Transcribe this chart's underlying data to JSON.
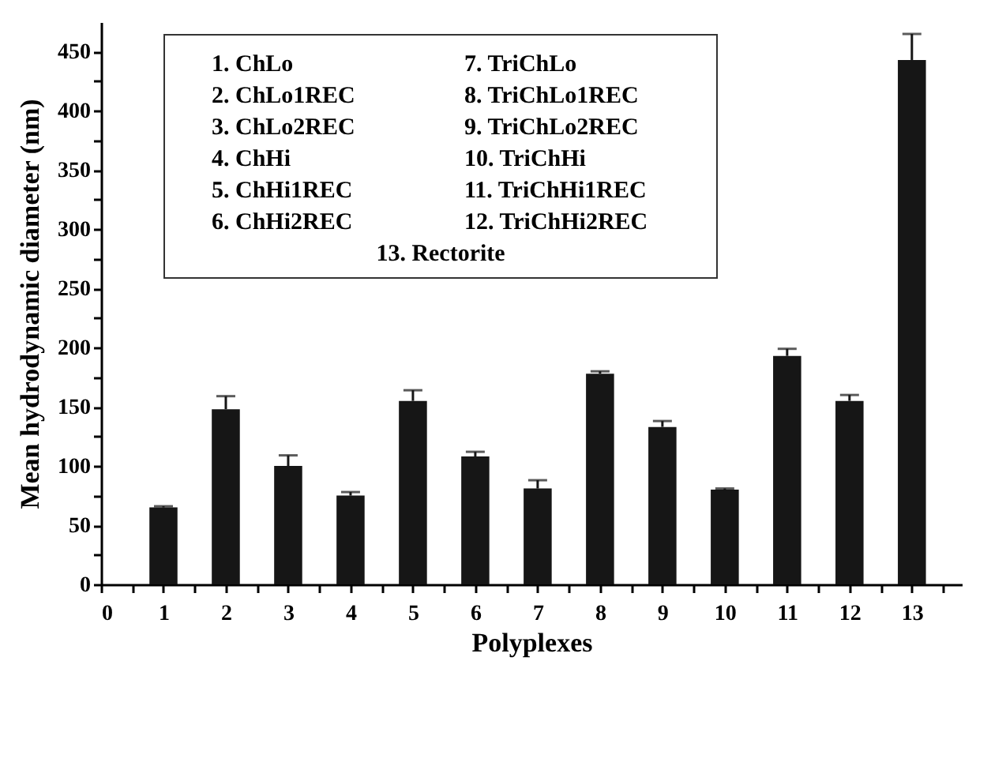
{
  "chart_data": {
    "type": "bar",
    "xlabel": "Polyplexes",
    "ylabel": "Mean hydrodynamic diameter (nm)",
    "x": [
      1,
      2,
      3,
      4,
      5,
      6,
      7,
      8,
      9,
      10,
      11,
      12,
      13
    ],
    "values": [
      65,
      148,
      100,
      75,
      155,
      108,
      81,
      178,
      133,
      80,
      193,
      155,
      443
    ],
    "errors": [
      1,
      11,
      9,
      3,
      9,
      4,
      7,
      2,
      5,
      1,
      6,
      5,
      22
    ],
    "color": "#161616",
    "xlim": [
      0,
      13.8
    ],
    "xticks": [
      0,
      {
        "value": 0.5,
        "label": null
      },
      1,
      {
        "value": 1.5,
        "label": null
      },
      2,
      {
        "value": 2.5,
        "label": null
      },
      3,
      {
        "value": 3.5,
        "label": null
      },
      4,
      {
        "value": 4.5,
        "label": null
      },
      5,
      {
        "value": 5.5,
        "label": null
      },
      6,
      {
        "value": 6.5,
        "label": null
      },
      7,
      {
        "value": 7.5,
        "label": null
      },
      8,
      {
        "value": 8.5,
        "label": null
      },
      9,
      {
        "value": 9.5,
        "label": null
      },
      10,
      {
        "value": 10.5,
        "label": null
      },
      11,
      {
        "value": 11.5,
        "label": null
      },
      12,
      {
        "value": 12.5,
        "label": null
      },
      13,
      {
        "value": 13.5,
        "label": null
      }
    ],
    "ylim": [
      0,
      475
    ],
    "yticks": [
      0,
      {
        "value": 25,
        "label": null
      },
      50,
      {
        "value": 75,
        "label": null
      },
      100,
      {
        "value": 125,
        "label": null
      },
      150,
      {
        "value": 175,
        "label": null
      },
      200,
      {
        "value": 225,
        "label": null
      },
      250,
      {
        "value": 275,
        "label": null
      },
      300,
      {
        "value": 325,
        "label": null
      },
      350,
      {
        "value": 375,
        "label": null
      },
      400,
      {
        "value": 425,
        "label": null
      },
      450
    ],
    "grid": false,
    "annotations": [
      "1. ChLo",
      "2. ChLo1REC",
      "3. ChLo2REC",
      "4. ChHi",
      "5. ChHi1REC",
      "6. ChHi2REC",
      "7. TriChLo",
      "8. TriChLo1REC",
      "9. TriChLo2REC",
      "10. TriChHi",
      "11. TriChHi1REC",
      "12. TriChHi2REC",
      "13. Rectorite"
    ]
  }
}
